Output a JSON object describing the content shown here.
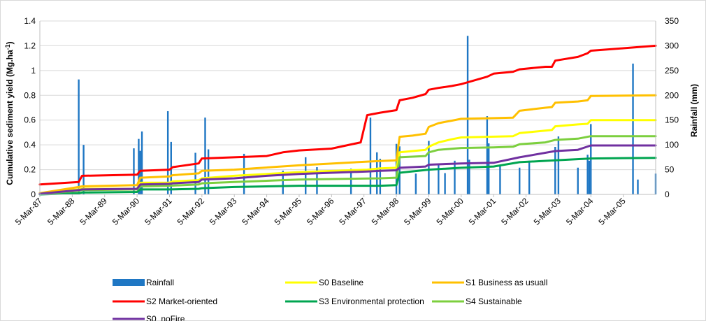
{
  "chart_data": {
    "type": "line",
    "ylabel": "Cumulative sediment yield (Mg.ha",
    "ylabel_sup": "-1",
    "ylabel_end": ")",
    "y2label": "Rainfall (mm)",
    "ylim": [
      0,
      1.4
    ],
    "y_ticks": [
      "0",
      "0.2",
      "0.4",
      "0.6",
      "0.8",
      "1",
      "1.2",
      "1.4"
    ],
    "y2lim": [
      0,
      350
    ],
    "y2_ticks": [
      "0",
      "50",
      "100",
      "150",
      "200",
      "250",
      "300",
      "350"
    ],
    "xlim": [
      1987.0,
      2006.0
    ],
    "x_ticks": [
      "5-Mar-87",
      "5-Mar-88",
      "5-Mar-89",
      "5-Mar-90",
      "5-Mar-91",
      "5-Mar-92",
      "5-Mar-93",
      "5-Mar-94",
      "5-Mar-95",
      "5-Mar-96",
      "5-Mar-97",
      "5-Mar-98",
      "5-Mar-99",
      "5-Mar-00",
      "5-Mar-01",
      "5-Mar-02",
      "5-Mar-03",
      "5-Mar-04",
      "5-Mar-05"
    ],
    "grid": "horizontal",
    "legend_position": "bottom",
    "rainfall": {
      "name": "Rainfall",
      "color": "#1f77c4",
      "x": [
        1987.0,
        1988.2,
        1988.35,
        1989.9,
        1990.05,
        1990.1,
        1990.15,
        1990.95,
        1991.05,
        1991.8,
        1992.1,
        1992.2,
        1993.3,
        1994.5,
        1995.2,
        1995.55,
        1996.6,
        1997.2,
        1997.4,
        1997.5,
        1998.0,
        1998.1,
        1998.6,
        1999.0,
        1999.3,
        1999.5,
        1999.8,
        2000.2,
        2000.25,
        2000.8,
        2000.85,
        2001.2,
        2001.8,
        2002.1,
        2002.9,
        2003.0,
        2003.6,
        2003.9,
        2003.95,
        2004.0,
        2005.3,
        2005.45,
        2006.0
      ],
      "values": [
        3,
        232,
        100,
        93,
        112,
        88,
        127,
        168,
        106,
        84,
        155,
        91,
        82,
        48,
        75,
        55,
        52,
        155,
        85,
        72,
        102,
        97,
        42,
        108,
        60,
        43,
        68,
        320,
        70,
        158,
        103,
        57,
        54,
        68,
        96,
        117,
        54,
        80,
        68,
        142,
        264,
        30,
        42
      ]
    },
    "series": [
      {
        "name": "S0 Baseline",
        "color": "#ffff00",
        "x": [
          1987.0,
          1988.2,
          1988.3,
          1990.0,
          1990.1,
          1991.0,
          1991.1,
          1991.9,
          1992.0,
          1993.0,
          1995.0,
          1997.1,
          1997.5,
          1998.0,
          1998.1,
          1998.5,
          1998.9,
          1999.0,
          1999.3,
          1999.7,
          2000.0,
          2000.8,
          2001.6,
          2001.8,
          2002.6,
          2002.8,
          2002.9,
          2003.6,
          2003.9,
          2004.0,
          2006.0
        ],
        "values": [
          0.01,
          0.04,
          0.045,
          0.045,
          0.095,
          0.095,
          0.105,
          0.115,
          0.13,
          0.15,
          0.18,
          0.2,
          0.21,
          0.215,
          0.34,
          0.35,
          0.36,
          0.385,
          0.42,
          0.445,
          0.46,
          0.465,
          0.47,
          0.495,
          0.515,
          0.52,
          0.55,
          0.565,
          0.57,
          0.6,
          0.6
        ]
      },
      {
        "name": "S1 Business as usuall",
        "color": "#ffc000",
        "x": [
          1987.0,
          1988.2,
          1988.3,
          1990.0,
          1990.1,
          1991.0,
          1991.1,
          1991.9,
          1992.0,
          1993.0,
          1995.0,
          1997.1,
          1997.5,
          1998.0,
          1998.1,
          1998.5,
          1998.9,
          1999.0,
          1999.3,
          1999.7,
          2000.0,
          2000.8,
          2001.6,
          2001.8,
          2002.6,
          2002.8,
          2002.9,
          2003.6,
          2003.9,
          2004.0,
          2006.0
        ],
        "values": [
          0.01,
          0.06,
          0.065,
          0.075,
          0.135,
          0.145,
          0.155,
          0.17,
          0.19,
          0.2,
          0.235,
          0.265,
          0.27,
          0.275,
          0.465,
          0.475,
          0.49,
          0.545,
          0.575,
          0.595,
          0.61,
          0.615,
          0.62,
          0.675,
          0.7,
          0.705,
          0.74,
          0.75,
          0.76,
          0.795,
          0.8
        ]
      },
      {
        "name": "S2 Market-oriented",
        "color": "#ff0000",
        "x": [
          1987.0,
          1988.2,
          1988.3,
          1990.0,
          1990.1,
          1991.0,
          1991.1,
          1991.9,
          1992.0,
          1993.0,
          1994.0,
          1994.5,
          1995.0,
          1996.0,
          1996.9,
          1997.1,
          1997.5,
          1998.0,
          1998.1,
          1998.5,
          1998.9,
          1999.0,
          1999.3,
          1999.7,
          2000.0,
          2000.8,
          2001.0,
          2001.6,
          2001.8,
          2002.6,
          2002.8,
          2002.9,
          2003.6,
          2003.9,
          2004.0,
          2005.0,
          2006.0
        ],
        "values": [
          0.08,
          0.1,
          0.15,
          0.16,
          0.19,
          0.2,
          0.22,
          0.25,
          0.29,
          0.3,
          0.31,
          0.34,
          0.355,
          0.37,
          0.42,
          0.64,
          0.66,
          0.68,
          0.76,
          0.78,
          0.81,
          0.845,
          0.86,
          0.875,
          0.89,
          0.95,
          0.975,
          0.99,
          1.01,
          1.03,
          1.03,
          1.08,
          1.11,
          1.14,
          1.16,
          1.18,
          1.2
        ]
      },
      {
        "name": "S3 Environmental protection",
        "color": "#00a550",
        "x": [
          1987.0,
          1988.2,
          1988.3,
          1990.0,
          1990.1,
          1991.0,
          1991.9,
          1992.0,
          1993.0,
          1995.0,
          1997.5,
          1998.0,
          1998.1,
          1999.0,
          2000.0,
          2001.0,
          2001.8,
          2002.9,
          2004.0,
          2006.0
        ],
        "values": [
          0.0,
          0.01,
          0.015,
          0.02,
          0.04,
          0.04,
          0.045,
          0.05,
          0.06,
          0.07,
          0.07,
          0.075,
          0.175,
          0.2,
          0.215,
          0.225,
          0.26,
          0.275,
          0.29,
          0.295
        ]
      },
      {
        "name": "S4 Sustainable",
        "color": "#7ccf3e",
        "x": [
          1987.0,
          1988.2,
          1988.3,
          1990.0,
          1990.1,
          1991.0,
          1991.9,
          1992.0,
          1993.0,
          1995.0,
          1997.5,
          1998.0,
          1998.1,
          1998.5,
          1998.9,
          1999.0,
          1999.3,
          2000.0,
          2001.0,
          2001.6,
          2001.8,
          2002.6,
          2002.9,
          2003.6,
          2004.0,
          2006.0
        ],
        "values": [
          0.005,
          0.03,
          0.035,
          0.04,
          0.065,
          0.07,
          0.08,
          0.09,
          0.1,
          0.12,
          0.13,
          0.135,
          0.3,
          0.305,
          0.31,
          0.34,
          0.36,
          0.375,
          0.38,
          0.385,
          0.405,
          0.42,
          0.44,
          0.45,
          0.47,
          0.47
        ]
      },
      {
        "name": "S0_noFire",
        "color": "#7030a0",
        "x": [
          1987.0,
          1988.2,
          1988.3,
          1990.0,
          1990.1,
          1991.0,
          1991.1,
          1991.9,
          1992.0,
          1993.0,
          1994.0,
          1995.0,
          1997.1,
          1997.5,
          1998.0,
          1998.1,
          1998.9,
          1999.0,
          2000.0,
          2001.0,
          2001.8,
          2002.9,
          2003.6,
          2004.0,
          2006.0
        ],
        "values": [
          0.005,
          0.035,
          0.04,
          0.045,
          0.08,
          0.085,
          0.09,
          0.1,
          0.12,
          0.13,
          0.15,
          0.165,
          0.185,
          0.19,
          0.195,
          0.215,
          0.225,
          0.24,
          0.25,
          0.255,
          0.3,
          0.35,
          0.36,
          0.395,
          0.395
        ]
      }
    ]
  }
}
